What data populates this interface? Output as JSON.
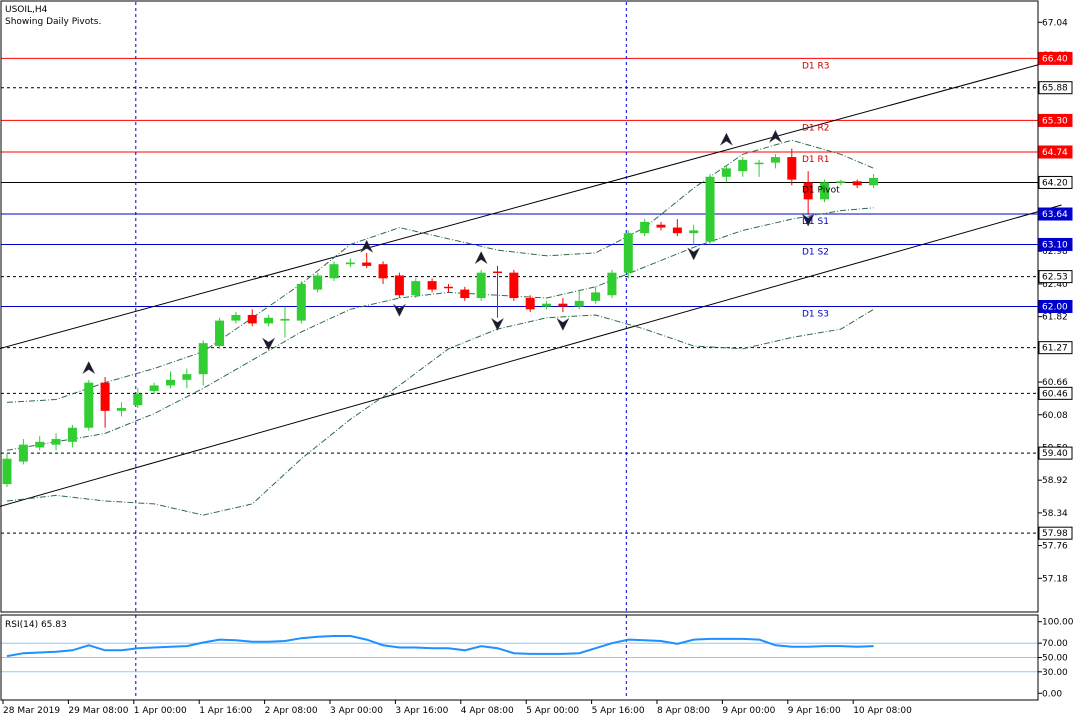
{
  "chart_data": [
    {
      "type": "candlestick",
      "title": "USOIL,H4",
      "subtitle": "Showing Daily Pivots.",
      "ylim": [
        56.6,
        67.4
      ],
      "y_ticks": [
        {
          "value": 67.04,
          "label": "67.04"
        },
        {
          "value": 66.46,
          "label": "66.46"
        },
        {
          "value": 65.88,
          "label": "65.88"
        },
        {
          "value": 65.3,
          "label": "65.30"
        },
        {
          "value": 64.74,
          "label": "64.74"
        },
        {
          "value": 64.2,
          "label": "64.20"
        },
        {
          "value": 63.64,
          "label": "63.64"
        },
        {
          "value": 62.98,
          "label": "62.98"
        },
        {
          "value": 62.4,
          "label": "62.40"
        },
        {
          "value": 61.82,
          "label": "61.82"
        },
        {
          "value": 61.24,
          "label": "61.24"
        },
        {
          "value": 60.66,
          "label": "60.66"
        },
        {
          "value": 60.08,
          "label": "60.08"
        },
        {
          "value": 59.5,
          "label": "59.50"
        },
        {
          "value": 58.92,
          "label": "58.92"
        },
        {
          "value": 58.34,
          "label": "58.34"
        },
        {
          "value": 57.76,
          "label": "57.76"
        },
        {
          "value": 57.18,
          "label": "57.18"
        }
      ],
      "x_labels": [
        {
          "index": 0,
          "label": "28 Mar 2019"
        },
        {
          "index": 4,
          "label": "29 Mar 08:00"
        },
        {
          "index": 8,
          "label": "1 Apr 00:00"
        },
        {
          "index": 12,
          "label": "1 Apr 16:00"
        },
        {
          "index": 16,
          "label": "2 Apr 08:00"
        },
        {
          "index": 20,
          "label": "3 Apr 00:00"
        },
        {
          "index": 24,
          "label": "3 Apr 16:00"
        },
        {
          "index": 28,
          "label": "4 Apr 08:00"
        },
        {
          "index": 32,
          "label": "5 Apr 00:00"
        },
        {
          "index": 36,
          "label": "5 Apr 16:00"
        },
        {
          "index": 40,
          "label": "8 Apr 08:00"
        },
        {
          "index": 44,
          "label": "9 Apr 00:00"
        },
        {
          "index": 48,
          "label": "9 Apr 16:00"
        },
        {
          "index": 52,
          "label": "10 Apr 08:00"
        }
      ],
      "day_separators": [
        8,
        38
      ],
      "candles": [
        {
          "o": 58.85,
          "h": 59.4,
          "c": 59.3,
          "l": 58.8
        },
        {
          "o": 59.25,
          "h": 59.65,
          "c": 59.55,
          "l": 59.2
        },
        {
          "o": 59.5,
          "h": 59.7,
          "c": 59.6,
          "l": 59.45
        },
        {
          "o": 59.55,
          "h": 59.75,
          "c": 59.65,
          "l": 59.45
        },
        {
          "o": 59.6,
          "h": 59.9,
          "c": 59.85,
          "l": 59.5
        },
        {
          "o": 59.85,
          "h": 60.7,
          "c": 60.65,
          "l": 59.8
        },
        {
          "o": 60.65,
          "h": 60.75,
          "c": 60.15,
          "l": 59.85
        },
        {
          "o": 60.15,
          "h": 60.3,
          "c": 60.2,
          "l": 60.05
        },
        {
          "o": 60.25,
          "h": 60.55,
          "c": 60.45,
          "l": 60.2
        },
        {
          "o": 60.5,
          "h": 60.65,
          "c": 60.6,
          "l": 60.45
        },
        {
          "o": 60.6,
          "h": 60.85,
          "c": 60.7,
          "l": 60.55
        },
        {
          "o": 60.7,
          "h": 60.9,
          "c": 60.8,
          "l": 60.55
        },
        {
          "o": 60.8,
          "h": 61.4,
          "c": 61.35,
          "l": 60.6
        },
        {
          "o": 61.3,
          "h": 61.8,
          "c": 61.75,
          "l": 61.25
        },
        {
          "o": 61.75,
          "h": 61.9,
          "c": 61.85,
          "l": 61.7
        },
        {
          "o": 61.85,
          "h": 61.95,
          "c": 61.7,
          "l": 61.65
        },
        {
          "o": 61.7,
          "h": 61.85,
          "c": 61.8,
          "l": 61.65
        },
        {
          "o": 61.75,
          "h": 62.0,
          "c": 61.78,
          "l": 61.45
        },
        {
          "o": 61.75,
          "h": 62.45,
          "c": 62.4,
          "l": 61.7
        },
        {
          "o": 62.3,
          "h": 62.6,
          "c": 62.55,
          "l": 62.25
        },
        {
          "o": 62.5,
          "h": 62.8,
          "c": 62.75,
          "l": 62.45
        },
        {
          "o": 62.75,
          "h": 62.85,
          "c": 62.78,
          "l": 62.7
        },
        {
          "o": 62.78,
          "h": 62.95,
          "c": 62.72,
          "l": 62.68
        },
        {
          "o": 62.75,
          "h": 62.8,
          "c": 62.5,
          "l": 62.4
        },
        {
          "o": 62.55,
          "h": 62.6,
          "c": 62.2,
          "l": 62.15
        },
        {
          "o": 62.2,
          "h": 62.5,
          "c": 62.45,
          "l": 62.15
        },
        {
          "o": 62.45,
          "h": 62.5,
          "c": 62.3,
          "l": 62.25
        },
        {
          "o": 62.35,
          "h": 62.4,
          "c": 62.33,
          "l": 62.25
        },
        {
          "o": 62.3,
          "h": 62.35,
          "c": 62.15,
          "l": 62.1
        },
        {
          "o": 62.15,
          "h": 62.65,
          "c": 62.6,
          "l": 62.1
        },
        {
          "o": 62.62,
          "h": 62.72,
          "c": 62.6,
          "l": 61.8
        },
        {
          "o": 62.6,
          "h": 62.65,
          "c": 62.15,
          "l": 62.1
        },
        {
          "o": 62.15,
          "h": 62.2,
          "c": 61.95,
          "l": 61.9
        },
        {
          "o": 62.0,
          "h": 62.1,
          "c": 62.05,
          "l": 61.95
        },
        {
          "o": 62.05,
          "h": 62.15,
          "c": 62.0,
          "l": 61.9
        },
        {
          "o": 62.0,
          "h": 62.3,
          "c": 62.1,
          "l": 61.95
        },
        {
          "o": 62.1,
          "h": 62.35,
          "c": 62.25,
          "l": 62.05
        },
        {
          "o": 62.2,
          "h": 62.65,
          "c": 62.6,
          "l": 62.15
        },
        {
          "o": 62.6,
          "h": 63.35,
          "c": 63.3,
          "l": 62.5
        },
        {
          "o": 63.3,
          "h": 63.55,
          "c": 63.5,
          "l": 63.25
        },
        {
          "o": 63.45,
          "h": 63.5,
          "c": 63.4,
          "l": 63.35
        },
        {
          "o": 63.4,
          "h": 63.55,
          "c": 63.3,
          "l": 63.25
        },
        {
          "o": 63.3,
          "h": 63.45,
          "c": 63.35,
          "l": 63.1
        },
        {
          "o": 63.15,
          "h": 64.35,
          "c": 64.3,
          "l": 63.1
        },
        {
          "o": 64.3,
          "h": 64.5,
          "c": 64.45,
          "l": 64.2
        },
        {
          "o": 64.4,
          "h": 64.65,
          "c": 64.6,
          "l": 64.3
        },
        {
          "o": 64.55,
          "h": 64.6,
          "c": 64.55,
          "l": 64.3
        },
        {
          "o": 64.55,
          "h": 64.7,
          "c": 64.65,
          "l": 64.45
        },
        {
          "o": 64.65,
          "h": 64.8,
          "c": 64.25,
          "l": 64.15
        },
        {
          "o": 64.2,
          "h": 64.4,
          "c": 63.9,
          "l": 63.65
        },
        {
          "o": 63.9,
          "h": 64.25,
          "c": 64.2,
          "l": 63.85
        },
        {
          "o": 64.2,
          "h": 64.25,
          "c": 64.22,
          "l": 64.15
        },
        {
          "o": 64.22,
          "h": 64.25,
          "c": 64.15,
          "l": 64.1
        },
        {
          "o": 64.15,
          "h": 64.35,
          "c": 64.28,
          "l": 64.1
        }
      ],
      "pivots": [
        {
          "label": "D1 R3",
          "box": "66.40",
          "value": 66.4,
          "color": "#ff0000"
        },
        {
          "label": "D1 R2",
          "box": "65.30",
          "value": 65.3,
          "color": "#ff0000"
        },
        {
          "label": "D1 R1",
          "box": "64.74",
          "value": 64.74,
          "color": "#ff0000"
        },
        {
          "label": "D1 Pivot",
          "box": "64.20",
          "value": 64.2,
          "color": "#000000"
        },
        {
          "label": "D1 S1",
          "box": "63.64",
          "value": 63.64,
          "color": "#0000cc"
        },
        {
          "label": "D1 S2",
          "box": "63.10",
          "value": 63.1,
          "color": "#0000cc"
        },
        {
          "label": "D1 S3",
          "box": "62.00",
          "value": 62.0,
          "color": "#0000cc"
        }
      ],
      "dashed_levels": [
        {
          "label": "65.88",
          "value": 65.88
        },
        {
          "label": "62.53",
          "value": 62.53
        },
        {
          "label": "61.27",
          "value": 61.27
        },
        {
          "label": "60.46",
          "value": 60.46
        },
        {
          "label": "59.40",
          "value": 59.4
        },
        {
          "label": "57.98",
          "value": 57.98
        }
      ],
      "channel": {
        "upper": [
          {
            "i": -0.5,
            "v": 61.25
          },
          {
            "i": 64.5,
            "v": 66.4
          }
        ],
        "lower": [
          {
            "i": -0.5,
            "v": 58.45
          },
          {
            "i": 64.5,
            "v": 63.8
          }
        ]
      },
      "band_upper": [
        {
          "i": 0,
          "v": 60.3
        },
        {
          "i": 3,
          "v": 60.35
        },
        {
          "i": 6,
          "v": 60.65
        },
        {
          "i": 9,
          "v": 60.9
        },
        {
          "i": 12,
          "v": 61.2
        },
        {
          "i": 15,
          "v": 61.8
        },
        {
          "i": 18,
          "v": 62.4
        },
        {
          "i": 21,
          "v": 63.1
        },
        {
          "i": 24,
          "v": 63.4
        },
        {
          "i": 27,
          "v": 63.2
        },
        {
          "i": 30,
          "v": 63.0
        },
        {
          "i": 33,
          "v": 62.9
        },
        {
          "i": 36,
          "v": 62.95
        },
        {
          "i": 39,
          "v": 63.4
        },
        {
          "i": 42,
          "v": 64.1
        },
        {
          "i": 45,
          "v": 64.7
        },
        {
          "i": 48,
          "v": 64.95
        },
        {
          "i": 51,
          "v": 64.7
        },
        {
          "i": 53,
          "v": 64.45
        }
      ],
      "band_mid": [
        {
          "i": 0,
          "v": 59.45
        },
        {
          "i": 3,
          "v": 59.6
        },
        {
          "i": 6,
          "v": 59.75
        },
        {
          "i": 9,
          "v": 60.1
        },
        {
          "i": 12,
          "v": 60.55
        },
        {
          "i": 15,
          "v": 61.05
        },
        {
          "i": 18,
          "v": 61.55
        },
        {
          "i": 21,
          "v": 61.95
        },
        {
          "i": 24,
          "v": 62.15
        },
        {
          "i": 27,
          "v": 62.25
        },
        {
          "i": 30,
          "v": 62.2
        },
        {
          "i": 33,
          "v": 62.15
        },
        {
          "i": 36,
          "v": 62.35
        },
        {
          "i": 39,
          "v": 62.7
        },
        {
          "i": 42,
          "v": 63.05
        },
        {
          "i": 45,
          "v": 63.35
        },
        {
          "i": 48,
          "v": 63.55
        },
        {
          "i": 51,
          "v": 63.7
        },
        {
          "i": 53,
          "v": 63.75
        }
      ],
      "band_lower": [
        {
          "i": 0,
          "v": 58.55
        },
        {
          "i": 3,
          "v": 58.65
        },
        {
          "i": 6,
          "v": 58.55
        },
        {
          "i": 9,
          "v": 58.5
        },
        {
          "i": 12,
          "v": 58.3
        },
        {
          "i": 15,
          "v": 58.5
        },
        {
          "i": 18,
          "v": 59.3
        },
        {
          "i": 21,
          "v": 60.0
        },
        {
          "i": 24,
          "v": 60.6
        },
        {
          "i": 27,
          "v": 61.25
        },
        {
          "i": 30,
          "v": 61.6
        },
        {
          "i": 33,
          "v": 61.8
        },
        {
          "i": 36,
          "v": 61.85
        },
        {
          "i": 39,
          "v": 61.6
        },
        {
          "i": 42,
          "v": 61.3
        },
        {
          "i": 45,
          "v": 61.25
        },
        {
          "i": 48,
          "v": 61.45
        },
        {
          "i": 51,
          "v": 61.6
        },
        {
          "i": 53,
          "v": 61.95
        }
      ],
      "fractals": [
        {
          "i": 5,
          "dir": "up",
          "v": 60.9
        },
        {
          "i": 16,
          "dir": "down",
          "v": 61.35
        },
        {
          "i": 22,
          "dir": "up",
          "v": 63.05
        },
        {
          "i": 24,
          "dir": "down",
          "v": 61.95
        },
        {
          "i": 29,
          "dir": "up",
          "v": 62.85
        },
        {
          "i": 30,
          "dir": "down",
          "v": 61.7
        },
        {
          "i": 34,
          "dir": "down",
          "v": 61.7
        },
        {
          "i": 42,
          "dir": "down",
          "v": 62.95
        },
        {
          "i": 44,
          "dir": "up",
          "v": 64.95
        },
        {
          "i": 47,
          "dir": "up",
          "v": 65.0
        },
        {
          "i": 49,
          "dir": "down",
          "v": 63.55
        }
      ]
    },
    {
      "type": "line",
      "title": "RSI(14) 65.83",
      "ylim": [
        -8,
        108
      ],
      "y_ticks": [
        {
          "value": 100,
          "label": "100.00"
        },
        {
          "value": 70,
          "label": "70.00"
        },
        {
          "value": 50,
          "label": "50.00"
        },
        {
          "value": 30,
          "label": "30.00"
        },
        {
          "value": 0,
          "label": "0.00"
        }
      ],
      "levels": [
        70,
        50,
        30
      ],
      "values": [
        52,
        56,
        57,
        58,
        60,
        67,
        60,
        60,
        63,
        64,
        65,
        66,
        71,
        75,
        74,
        72,
        72,
        73,
        77,
        79,
        80,
        80,
        75,
        67,
        64,
        64,
        63,
        63,
        60,
        66,
        63,
        56,
        55,
        55,
        55,
        56,
        63,
        70,
        75,
        74,
        73,
        69,
        75,
        76,
        76,
        76,
        75,
        67,
        65,
        65,
        66,
        66,
        65,
        66
      ]
    }
  ],
  "colors": {
    "bull": "#32cd32",
    "bear": "#ff0000",
    "rsi_line": "#1e90ff",
    "rsi_level": "#87cefa",
    "grid_sep": "#0000cc",
    "band": "#2e6b4f"
  }
}
